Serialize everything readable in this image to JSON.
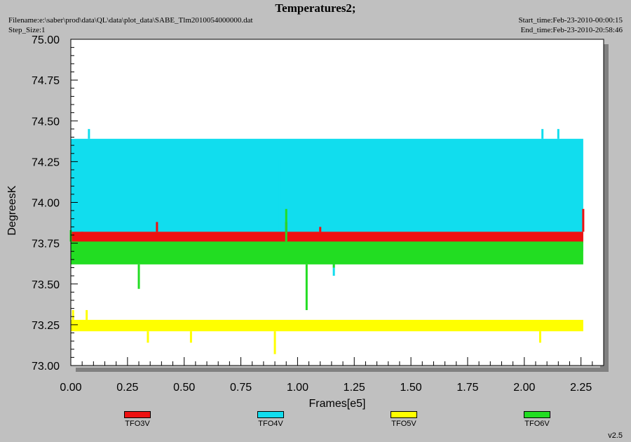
{
  "header": {
    "title": "Temperatures2;",
    "filename": "Filename:e:\\saber\\prod\\data\\QL\\data\\plot_data\\SABE_Tlm2010054000000.dat",
    "step_size": "Step_Size:1",
    "start_time": "Start_time:Feb-23-2010-00:00:15",
    "end_time": "End_time:Feb-23-2010-20:58:46"
  },
  "footer": {
    "version": "v2.5"
  },
  "chart_data": {
    "type": "line",
    "title": "Temperatures2;",
    "xlabel": "Frames[e5]",
    "ylabel": "DegreesK",
    "xlim": [
      0,
      2.35
    ],
    "ylim": [
      73.0,
      75.0
    ],
    "x_ticks": [
      "0.00",
      "0.25",
      "0.50",
      "0.75",
      "1.00",
      "1.25",
      "1.50",
      "1.75",
      "2.00",
      "2.25"
    ],
    "y_ticks": [
      "73.00",
      "73.25",
      "73.50",
      "73.75",
      "74.00",
      "74.25",
      "74.50",
      "74.75",
      "75.00"
    ],
    "grid": false,
    "legend_position": "bottom",
    "x_range_data": [
      0,
      2.26
    ],
    "series": [
      {
        "name": "TFO3V",
        "color": "#ee1111",
        "typical_range": [
          73.75,
          73.82
        ],
        "spikes": [
          [
            0.05,
            73.82
          ],
          [
            0.38,
            73.88
          ],
          [
            0.95,
            73.88
          ],
          [
            1.1,
            73.85
          ],
          [
            2.26,
            73.96
          ]
        ]
      },
      {
        "name": "TFO4V",
        "color": "#11ddee",
        "typical_range": [
          73.7,
          74.39
        ],
        "spikes": [
          [
            0.08,
            74.45
          ],
          [
            0.92,
            74.26
          ],
          [
            1.16,
            73.55
          ],
          [
            2.08,
            74.45
          ],
          [
            2.15,
            74.45
          ]
        ]
      },
      {
        "name": "TFO5V",
        "color": "#ffff00",
        "typical_range": [
          73.21,
          73.28
        ],
        "spikes": [
          [
            0.01,
            73.34
          ],
          [
            0.07,
            73.34
          ],
          [
            0.34,
            73.14
          ],
          [
            0.53,
            73.14
          ],
          [
            0.9,
            73.07
          ],
          [
            2.07,
            73.14
          ]
        ]
      },
      {
        "name": "TFO6V",
        "color": "#22dd22",
        "typical_range": [
          73.62,
          73.76
        ],
        "spikes": [
          [
            0.0,
            73.83
          ],
          [
            0.3,
            73.47
          ],
          [
            0.95,
            73.96
          ],
          [
            1.04,
            73.34
          ],
          [
            1.16,
            73.6
          ]
        ]
      }
    ]
  }
}
